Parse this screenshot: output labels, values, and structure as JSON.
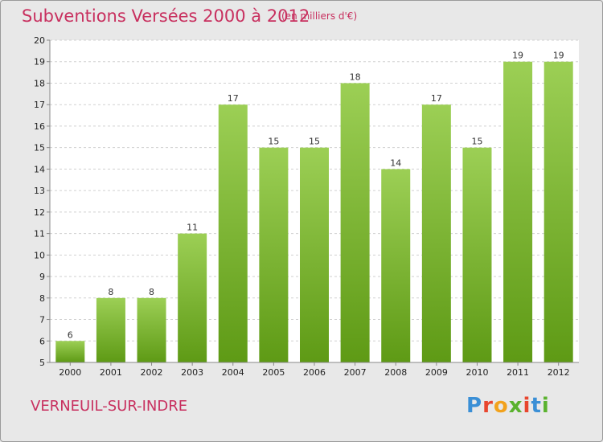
{
  "header": {
    "title": "Subventions Versées 2000 à 2012",
    "subtitle": "(en milliers d'€)"
  },
  "footer": {
    "commune": "VERNEUIL-SUR-INDRE",
    "logo_text": "Proxiti",
    "logo_colors": [
      "#3a8fd6",
      "#e8462e",
      "#f2a21c",
      "#5ab22e",
      "#e8462e",
      "#3a8fd6",
      "#5ab22e"
    ]
  },
  "colors": {
    "bar_top": "#9ccf55",
    "bar_bottom": "#5e9a15",
    "grid": "#d0d0d0",
    "plot_bg": "#ffffff",
    "title": "#c8305f"
  },
  "chart_data": {
    "type": "bar",
    "title": "Subventions Versées 2000 à 2012",
    "xlabel": "",
    "ylabel": "",
    "categories": [
      "2000",
      "2001",
      "2002",
      "2003",
      "2004",
      "2005",
      "2006",
      "2007",
      "2008",
      "2009",
      "2010",
      "2011",
      "2012"
    ],
    "values": [
      6,
      8,
      8,
      11,
      17,
      15,
      15,
      18,
      14,
      17,
      15,
      19,
      19
    ],
    "ylim": [
      5,
      20
    ],
    "yticks": [
      5,
      6,
      7,
      8,
      9,
      10,
      11,
      12,
      13,
      14,
      15,
      16,
      17,
      18,
      19,
      20
    ],
    "grid": true
  }
}
